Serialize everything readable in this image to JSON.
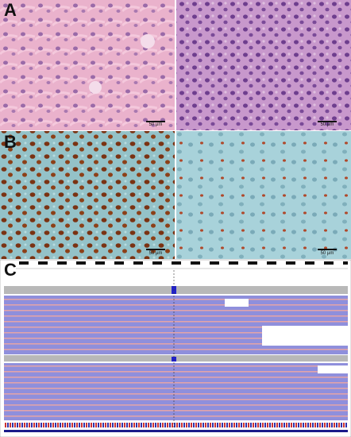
{
  "panels": [
    {
      "label": "A",
      "scale_bars": [
        "50 µm",
        "50 µm"
      ]
    },
    {
      "label": "B",
      "scale_bars": [
        "50 µm",
        "50 µm"
      ]
    },
    {
      "label": "C"
    }
  ]
}
